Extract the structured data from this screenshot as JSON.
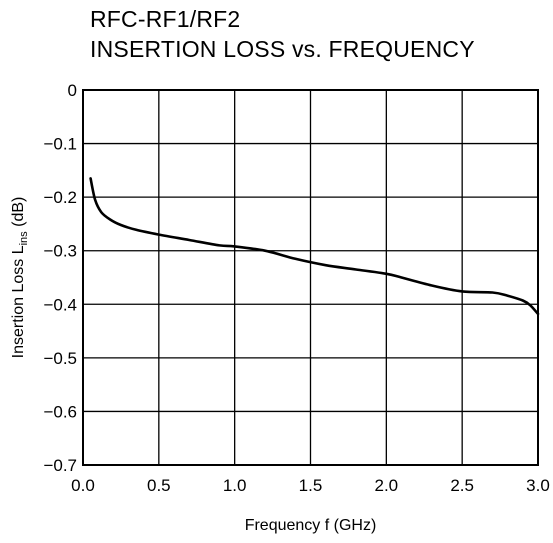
{
  "chart_data": {
    "type": "line",
    "title": "RFC-RF1/RF2",
    "subtitle": "INSERTION LOSS vs. FREQUENCY",
    "xlabel": "Frequency  f (GHz)",
    "ylabel": {
      "main": "Insertion Loss  L",
      "subscript": "ins",
      "unit": " (dB)"
    },
    "xlim": [
      0.0,
      3.0
    ],
    "ylim": [
      -0.7,
      0
    ],
    "x_ticks": [
      "0.0",
      "0.5",
      "1.0",
      "1.5",
      "2.0",
      "2.5",
      "3.0"
    ],
    "y_ticks": [
      "0",
      "−0.1",
      "−0.2",
      "−0.3",
      "−0.4",
      "−0.5",
      "−0.6",
      "−0.7"
    ],
    "grid": true,
    "series": [
      {
        "x": [
          0.05,
          0.08,
          0.12,
          0.18,
          0.25,
          0.35,
          0.5,
          0.7,
          0.9,
          1.0,
          1.2,
          1.4,
          1.6,
          1.8,
          2.0,
          2.1,
          2.3,
          2.5,
          2.7,
          2.8,
          2.9,
          2.95,
          3.0
        ],
        "y": [
          -0.165,
          -0.205,
          -0.228,
          -0.242,
          -0.252,
          -0.261,
          -0.27,
          -0.28,
          -0.29,
          -0.292,
          -0.3,
          -0.315,
          -0.327,
          -0.335,
          -0.343,
          -0.35,
          -0.365,
          -0.376,
          -0.378,
          -0.384,
          -0.393,
          -0.402,
          -0.418
        ]
      }
    ]
  }
}
